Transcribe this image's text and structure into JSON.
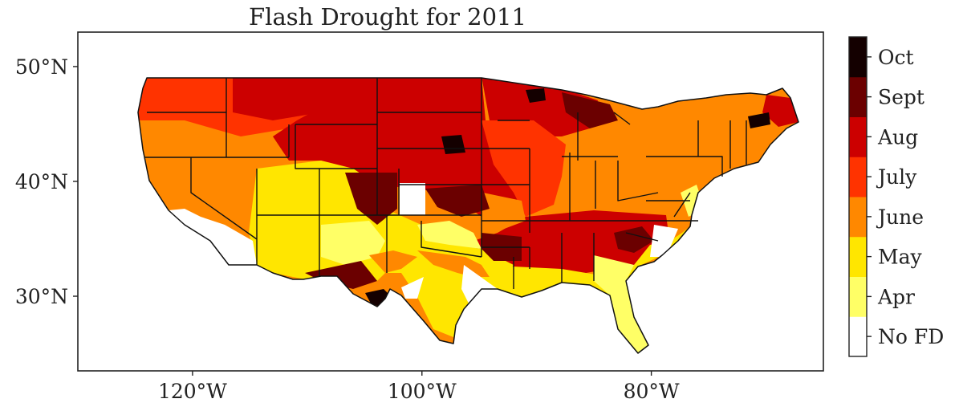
{
  "title": "Flash Drought for 2011",
  "map": {
    "lon_range": [
      -130,
      -65
    ],
    "lat_range": [
      23.5,
      53
    ],
    "x_ticks": [
      {
        "lon": -120,
        "label": "120°W"
      },
      {
        "lon": -100,
        "label": "100°W"
      },
      {
        "lon": -80,
        "label": "80°W"
      }
    ],
    "y_ticks": [
      {
        "lat": 50,
        "label": "50°N"
      },
      {
        "lat": 40,
        "label": "40°N"
      },
      {
        "lat": 30,
        "label": "30°N"
      }
    ]
  },
  "colorbar": {
    "categories": [
      {
        "label": "No FD",
        "color": "#ffffff"
      },
      {
        "label": "Apr",
        "color": "#ffff66"
      },
      {
        "label": "May",
        "color": "#ffe600"
      },
      {
        "label": "June",
        "color": "#ff8800"
      },
      {
        "label": "July",
        "color": "#ff3300"
      },
      {
        "label": "Aug",
        "color": "#cc0000"
      },
      {
        "label": "Sept",
        "color": "#6b0000"
      },
      {
        "label": "Oct",
        "color": "#140000"
      }
    ]
  }
}
